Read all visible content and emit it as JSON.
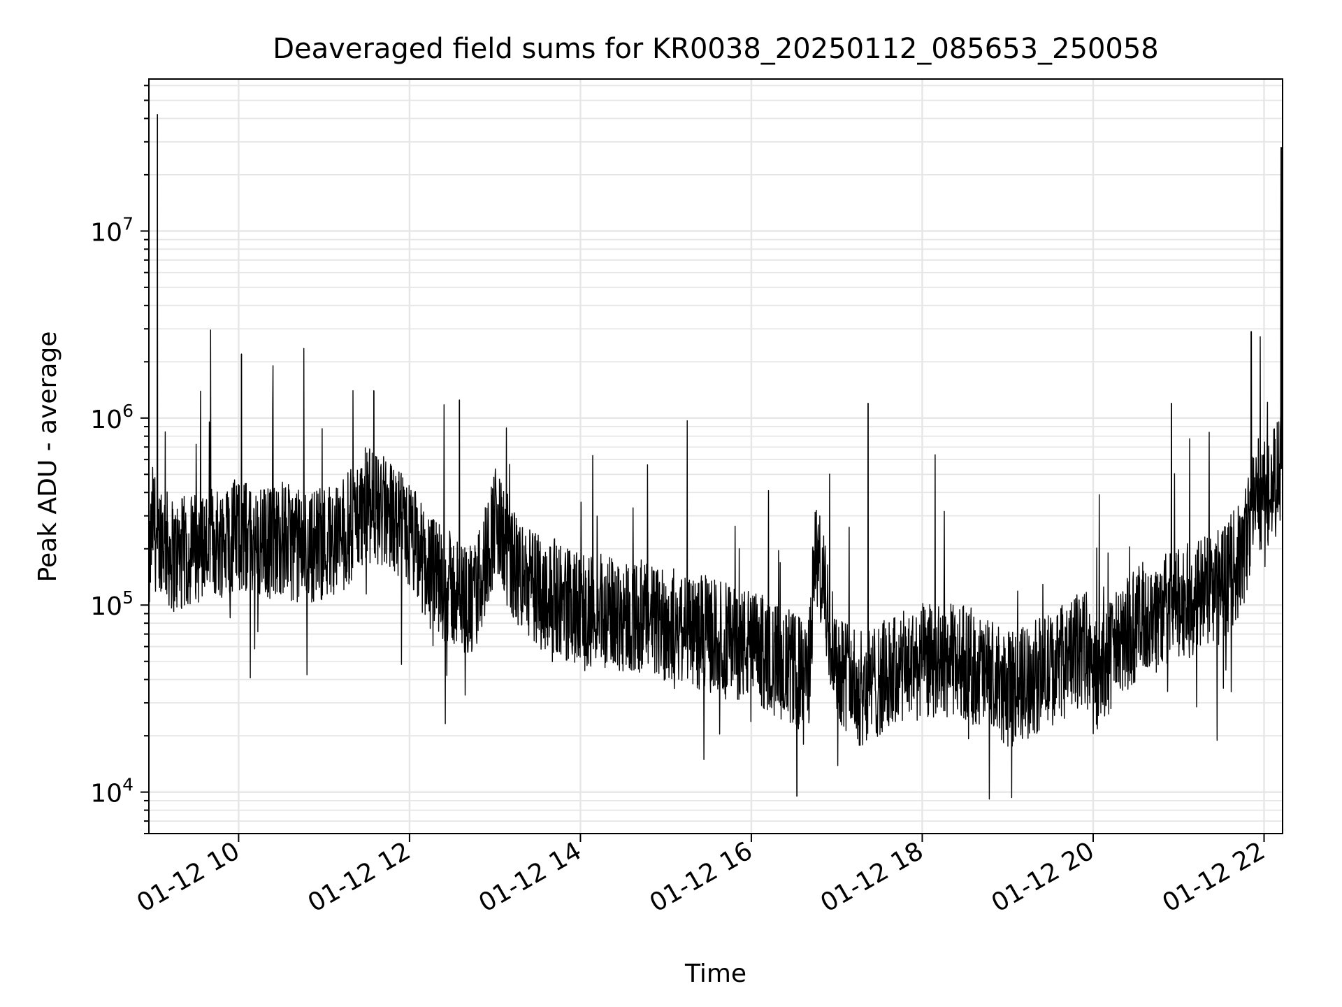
{
  "chart_data": {
    "type": "line",
    "title": "Deaveraged field sums for KR0038_20250112_085653_250058",
    "xlabel": "Time",
    "ylabel": "Peak ADU - average",
    "yscale": "log",
    "ylim": [
      6000,
      65000000
    ],
    "xlim": [
      "2025-01-12 08:57",
      "2025-01-12 22:13"
    ],
    "x_tick_labels": [
      "01-12 10",
      "01-12 12",
      "01-12 14",
      "01-12 16",
      "01-12 18",
      "01-12 20",
      "01-12 22"
    ],
    "x_tick_times": [
      "2025-01-12 10:00",
      "2025-01-12 12:00",
      "2025-01-12 14:00",
      "2025-01-12 16:00",
      "2025-01-12 18:00",
      "2025-01-12 20:00",
      "2025-01-12 22:00"
    ],
    "y_tick_labels": [
      {
        "base": "10",
        "exp": "4",
        "value": 10000
      },
      {
        "base": "10",
        "exp": "5",
        "value": 100000
      },
      {
        "base": "10",
        "exp": "6",
        "value": 1000000
      },
      {
        "base": "10",
        "exp": "7",
        "value": 10000000
      }
    ],
    "grid": true,
    "line_color": "#000000",
    "series": [
      {
        "x": [
          "2025-01-12 08:57",
          "2025-01-12 09:00",
          "2025-01-12 09:03",
          "2025-01-12 09:06",
          "2025-01-12 09:10",
          "2025-01-12 09:15",
          "2025-01-12 09:30",
          "2025-01-12 09:45",
          "2025-01-12 10:00",
          "2025-01-12 10:15",
          "2025-01-12 10:30",
          "2025-01-12 10:45",
          "2025-01-12 11:00",
          "2025-01-12 11:15",
          "2025-01-12 11:30",
          "2025-01-12 11:45",
          "2025-01-12 12:00",
          "2025-01-12 12:15",
          "2025-01-12 12:30",
          "2025-01-12 12:45",
          "2025-01-12 13:00",
          "2025-01-12 13:15",
          "2025-01-12 13:30",
          "2025-01-12 13:45",
          "2025-01-12 14:00",
          "2025-01-12 14:30",
          "2025-01-12 15:00",
          "2025-01-12 15:30",
          "2025-01-12 16:00",
          "2025-01-12 16:20",
          "2025-01-12 16:40",
          "2025-01-12 16:45",
          "2025-01-12 17:00",
          "2025-01-12 17:15",
          "2025-01-12 17:30",
          "2025-01-12 18:00",
          "2025-01-12 18:30",
          "2025-01-12 19:00",
          "2025-01-12 19:30",
          "2025-01-12 19:55",
          "2025-01-12 20:00",
          "2025-01-12 20:30",
          "2025-01-12 21:00",
          "2025-01-12 21:30",
          "2025-01-12 21:45",
          "2025-01-12 21:52",
          "2025-01-12 21:55",
          "2025-01-12 22:00",
          "2025-01-12 22:05",
          "2025-01-12 22:10",
          "2025-01-12 22:13"
        ],
        "y": [
          150000,
          300000,
          200000,
          250000,
          200000,
          180000,
          200000,
          220000,
          240000,
          210000,
          230000,
          200000,
          220000,
          240000,
          350000,
          300000,
          230000,
          150000,
          120000,
          100000,
          280000,
          150000,
          120000,
          110000,
          90000,
          90000,
          80000,
          70000,
          60000,
          50000,
          40000,
          200000,
          50000,
          35000,
          40000,
          50000,
          50000,
          35000,
          45000,
          60000,
          40000,
          80000,
          100000,
          130000,
          180000,
          350000,
          400000,
          400000,
          420000,
          500000,
          550000
        ]
      }
    ],
    "spikes": [
      {
        "x": "2025-01-12 09:03",
        "y": 42000000
      },
      {
        "x": "2025-01-12 10:02",
        "y": 2200000
      },
      {
        "x": "2025-01-12 11:35",
        "y": 1400000
      },
      {
        "x": "2025-01-12 12:35",
        "y": 1250000
      },
      {
        "x": "2025-01-12 16:32",
        "y": 9500
      },
      {
        "x": "2025-01-12 17:22",
        "y": 1200000
      },
      {
        "x": "2025-01-12 20:55",
        "y": 1200000
      },
      {
        "x": "2025-01-12 21:51",
        "y": 2900000
      },
      {
        "x": "2025-01-12 22:12",
        "y": 28000000
      }
    ]
  }
}
